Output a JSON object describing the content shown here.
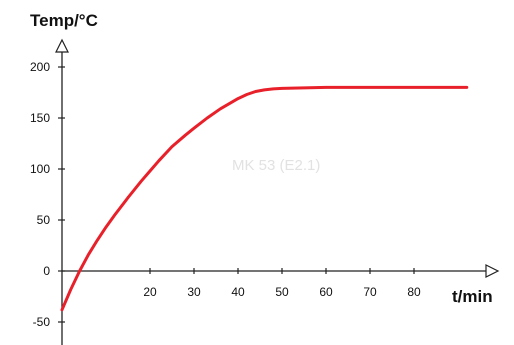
{
  "chart_data": {
    "type": "line",
    "title": "",
    "xlabel": "t/min",
    "ylabel": "Temp/°C",
    "xlim": [
      0,
      95
    ],
    "ylim": [
      -60,
      215
    ],
    "xticks": [
      20,
      30,
      40,
      50,
      60,
      70,
      80
    ],
    "yticks": [
      -50,
      0,
      50,
      100,
      150,
      200
    ],
    "grid": false,
    "legend": "none",
    "annotation": "MK 53 (E2.1)",
    "colors": {
      "line": "#e8202a",
      "axis": "#222222",
      "watermark": "#e2e2e2"
    },
    "series": [
      {
        "x": [
          0,
          2,
          4,
          6,
          8,
          10,
          12,
          15,
          18,
          20,
          22,
          25,
          28,
          30,
          33,
          36,
          38,
          40,
          42,
          44,
          46,
          48,
          50,
          55,
          60,
          65,
          70,
          75,
          80,
          85,
          92
        ],
        "y": [
          -38,
          -18,
          0,
          16,
          30,
          43,
          55,
          72,
          88,
          98,
          108,
          122,
          133,
          140,
          150,
          159,
          164,
          169,
          173,
          176,
          177.5,
          178.5,
          179,
          179.5,
          180,
          180,
          180,
          180,
          180,
          180,
          180
        ]
      }
    ]
  }
}
